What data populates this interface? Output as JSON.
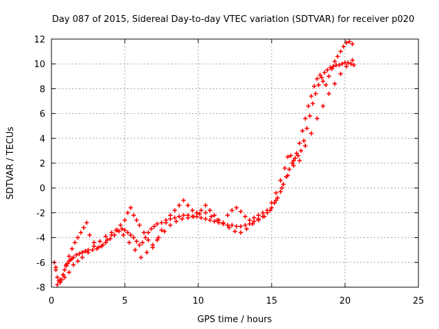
{
  "chart_data": {
    "type": "scatter",
    "title": "Day 087 of 2015, Sidereal Day-to-day VTEC variation (SDTVAR) for receiver p020",
    "xlabel": "GPS time / hours",
    "ylabel": "SDTVAR / TECUs",
    "xlim": [
      0,
      25
    ],
    "ylim": [
      -8,
      12
    ],
    "xticks": [
      0,
      5,
      10,
      15,
      20,
      25
    ],
    "yticks": [
      -8,
      -6,
      -4,
      -2,
      0,
      2,
      4,
      6,
      8,
      10,
      12
    ],
    "grid": true,
    "marker": "+",
    "color": "#ff0000",
    "series": [
      {
        "x": [
          0.2,
          0.3,
          0.4,
          0.5,
          0.6,
          0.7,
          0.8,
          0.9,
          1.0,
          1.1,
          1.2,
          1.3,
          1.4,
          1.5,
          1.7,
          1.9,
          2.1,
          2.3,
          2.5,
          2.8,
          3.1,
          3.4,
          3.7,
          4.0,
          4.3,
          4.6,
          4.8,
          5.0,
          5.2,
          5.4,
          5.6,
          5.8,
          6.0,
          6.2,
          6.4,
          6.6,
          6.8,
          7.0,
          7.2,
          7.5,
          7.8,
          8.1,
          8.4,
          8.7,
          9.0,
          9.3,
          9.6,
          9.9,
          10.2,
          10.5,
          10.8,
          11.1,
          11.4,
          11.7,
          12.0,
          12.3,
          12.6,
          12.9,
          13.2,
          13.5,
          13.8,
          14.1,
          14.4,
          14.7,
          15.0,
          15.2,
          15.4,
          15.6,
          15.8,
          16.0,
          16.2,
          16.4,
          16.6,
          16.8,
          17.0,
          17.2,
          17.4,
          17.6,
          17.8,
          18.0,
          18.2,
          18.4,
          18.6,
          18.8,
          19.0,
          19.2,
          19.4,
          19.6,
          19.8,
          20.0,
          20.2,
          20.4,
          20.6
        ],
        "y": [
          -6.0,
          -6.6,
          -7.2,
          -7.5,
          -7.6,
          -7.4,
          -7.0,
          -6.6,
          -6.3,
          -6.1,
          -5.9,
          -5.8,
          -5.7,
          -5.6,
          -5.4,
          -5.3,
          -5.2,
          -5.1,
          -5.0,
          -5.0,
          -4.9,
          -4.7,
          -4.4,
          -4.1,
          -3.8,
          -3.5,
          -3.3,
          -3.4,
          -3.6,
          -3.8,
          -4.0,
          -4.3,
          -4.6,
          -4.4,
          -4.0,
          -3.6,
          -3.3,
          -3.1,
          -2.9,
          -2.8,
          -2.6,
          -2.5,
          -2.4,
          -2.3,
          -2.2,
          -2.2,
          -2.3,
          -2.3,
          -2.4,
          -2.5,
          -2.6,
          -2.7,
          -2.8,
          -2.9,
          -3.0,
          -3.0,
          -3.1,
          -3.1,
          -3.0,
          -2.9,
          -2.7,
          -2.5,
          -2.3,
          -2.0,
          -1.6,
          -1.2,
          -0.8,
          -0.3,
          0.3,
          0.9,
          1.5,
          2.0,
          2.4,
          2.6,
          3.0,
          3.8,
          4.8,
          5.8,
          6.8,
          7.6,
          8.3,
          8.9,
          9.3,
          9.5,
          9.7,
          9.8,
          9.9,
          9.9,
          10.0,
          10.1,
          10.1,
          10.0,
          9.9
        ]
      },
      {
        "x": [
          0.4,
          0.6,
          0.8,
          1.0,
          1.2,
          1.4,
          1.6,
          1.8,
          2.0,
          2.2,
          2.4,
          2.6,
          2.9,
          3.2,
          3.5,
          3.8,
          4.1,
          4.4,
          4.7,
          5.0,
          5.2,
          5.4,
          5.6,
          5.8,
          6.0,
          6.3,
          6.6,
          6.9,
          7.2,
          7.5,
          7.8,
          8.1,
          8.4,
          8.7,
          9.0,
          9.3,
          9.6,
          9.9,
          10.2,
          10.5,
          10.8,
          11.1,
          11.4,
          11.7,
          12.0,
          12.3,
          12.6,
          12.9,
          13.2,
          13.5,
          13.8,
          14.1,
          14.4,
          14.7,
          15.0,
          15.3,
          15.6,
          15.9,
          16.1,
          16.3,
          16.5,
          16.7,
          16.9,
          17.1,
          17.3,
          17.5,
          17.7,
          17.9,
          18.1,
          18.3,
          18.5,
          18.7,
          18.9,
          19.1,
          19.3,
          19.5,
          19.7,
          19.9,
          20.1,
          20.3,
          20.5
        ],
        "y": [
          -7.8,
          -7.4,
          -7.0,
          -6.2,
          -5.5,
          -4.9,
          -4.4,
          -4.0,
          -3.6,
          -3.2,
          -2.8,
          -3.8,
          -4.4,
          -4.8,
          -4.6,
          -4.2,
          -3.8,
          -3.4,
          -3.0,
          -2.6,
          -2.0,
          -1.6,
          -2.2,
          -2.6,
          -3.0,
          -3.6,
          -4.2,
          -4.8,
          -4.2,
          -3.4,
          -2.8,
          -2.2,
          -1.8,
          -1.4,
          -1.0,
          -1.4,
          -1.8,
          -2.0,
          -1.8,
          -1.4,
          -1.8,
          -2.2,
          -2.6,
          -2.8,
          -2.2,
          -1.8,
          -1.6,
          -1.9,
          -2.3,
          -2.6,
          -2.4,
          -2.2,
          -2.0,
          -1.8,
          -1.2,
          -0.4,
          0.6,
          1.6,
          2.5,
          2.6,
          2.2,
          2.8,
          3.6,
          4.6,
          5.6,
          6.6,
          7.4,
          8.2,
          8.8,
          9.1,
          8.6,
          8.3,
          9.0,
          9.6,
          10.2,
          10.6,
          11.0,
          11.4,
          11.7,
          11.8,
          11.6
        ]
      },
      {
        "x": [
          0.3,
          0.6,
          0.9,
          1.2,
          1.5,
          1.8,
          2.1,
          2.5,
          2.9,
          3.3,
          3.7,
          4.1,
          4.5,
          4.9,
          5.3,
          5.7,
          6.1,
          6.5,
          6.9,
          7.3,
          7.7,
          8.1,
          8.5,
          8.9,
          9.3,
          9.7,
          10.1,
          10.5,
          10.9,
          11.3,
          11.7,
          12.1,
          12.5,
          12.9,
          13.3,
          13.7,
          14.1,
          14.5,
          14.9,
          15.3,
          15.7,
          16.1,
          16.5,
          16.9,
          17.3,
          17.7,
          18.1,
          18.5,
          18.9,
          19.3,
          19.7,
          20.1,
          20.5
        ],
        "y": [
          -6.4,
          -7.6,
          -7.2,
          -6.8,
          -6.2,
          -5.9,
          -5.6,
          -5.2,
          -4.7,
          -4.3,
          -3.9,
          -3.6,
          -3.4,
          -3.8,
          -4.4,
          -5.0,
          -5.6,
          -5.2,
          -4.6,
          -4.0,
          -3.5,
          -3.0,
          -2.7,
          -2.5,
          -2.4,
          -2.3,
          -2.1,
          -2.0,
          -2.3,
          -2.6,
          -2.9,
          -3.2,
          -3.5,
          -3.6,
          -3.3,
          -2.9,
          -2.6,
          -2.3,
          -1.8,
          -1.0,
          0.0,
          1.0,
          1.8,
          2.2,
          3.4,
          4.4,
          5.6,
          6.6,
          7.6,
          8.4,
          9.2,
          9.8,
          10.3
        ]
      }
    ]
  }
}
